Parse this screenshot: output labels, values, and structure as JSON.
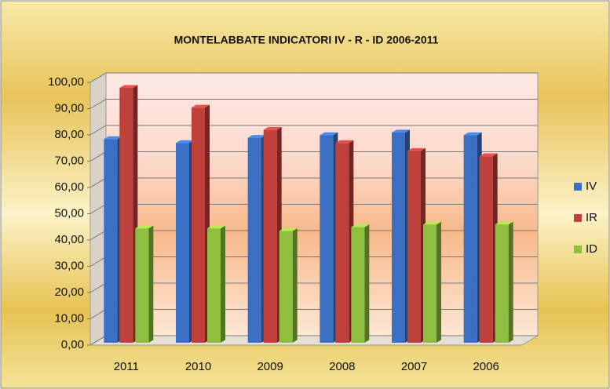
{
  "chart_data": {
    "type": "bar",
    "title": "MONTELABBATE INDICATORI  IV  - R  - ID  2006-2011",
    "categories": [
      "2011",
      "2010",
      "2009",
      "2008",
      "2007",
      "2006"
    ],
    "series": [
      {
        "name": "IV",
        "color": "#3b6fc4",
        "values": [
          77.5,
          76,
          78,
          79,
          80,
          79
        ]
      },
      {
        "name": "IR",
        "color": "#c0403c",
        "values": [
          97,
          89.5,
          81,
          76,
          73,
          71
        ]
      },
      {
        "name": "ID",
        "color": "#8ebf3f",
        "values": [
          43.5,
          43.5,
          42.5,
          44,
          45,
          45
        ]
      }
    ],
    "ylim": [
      0,
      100
    ],
    "yticks": [
      {
        "value": 0,
        "label": "0,00"
      },
      {
        "value": 10,
        "label": "10,00"
      },
      {
        "value": 20,
        "label": "20,00"
      },
      {
        "value": 30,
        "label": "30,00"
      },
      {
        "value": 40,
        "label": "40,00"
      },
      {
        "value": 50,
        "label": "50,00"
      },
      {
        "value": 60,
        "label": "60,00"
      },
      {
        "value": 70,
        "label": "70,00"
      },
      {
        "value": 80,
        "label": "80,00"
      },
      {
        "value": 90,
        "label": "90,00"
      },
      {
        "value": 100,
        "label": "100,00"
      }
    ],
    "grid": true,
    "legend": "right"
  }
}
